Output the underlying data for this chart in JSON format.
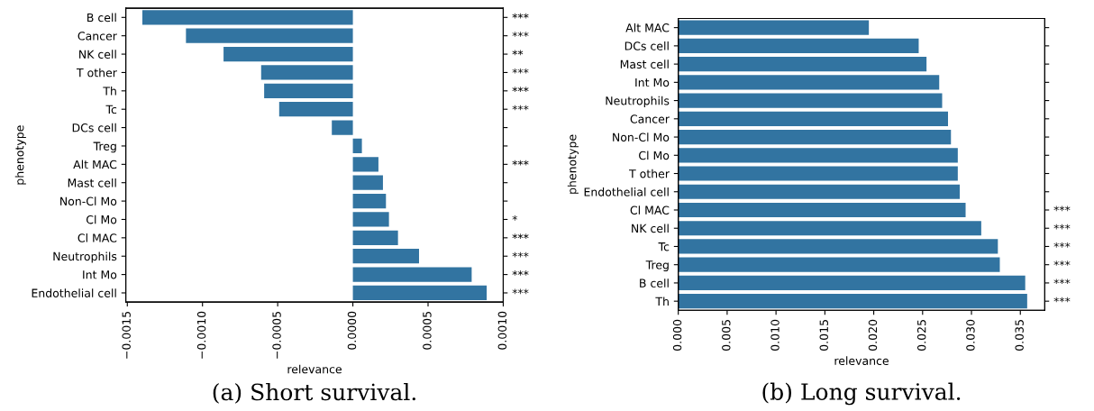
{
  "chart_data": [
    {
      "type": "bar",
      "orientation": "horizontal",
      "xlabel": "relevance",
      "ylabel": "phenotype",
      "color": "#3274a1",
      "categories": [
        "B cell",
        "Cancer",
        "NK cell",
        "T other",
        "Th",
        "Tc",
        "DCs cell",
        "Treg",
        "Alt MAC",
        "Mast cell",
        "Non-Cl Mo",
        "Cl Mo",
        "Cl MAC",
        "Neutrophils",
        "Int Mo",
        "Endothelial cell"
      ],
      "values": [
        -0.0014,
        -0.00111,
        -0.00086,
        -0.00061,
        -0.00059,
        -0.00049,
        -0.00014,
        6e-05,
        0.00017,
        0.0002,
        0.00022,
        0.00024,
        0.0003,
        0.00044,
        0.00079,
        0.00089
      ],
      "y2_categories": [
        "***",
        "***",
        "**",
        "***",
        "***",
        "***",
        null,
        null,
        "***",
        null,
        null,
        "*",
        "***",
        "***",
        "***",
        "***"
      ],
      "xlim": [
        -0.00151,
        0.001
      ],
      "xticks": [
        {
          "value": -0.0015,
          "label": "−0.0015"
        },
        {
          "value": -0.001,
          "label": "−0.0010"
        },
        {
          "value": -0.0005,
          "label": "−0.0005"
        },
        {
          "value": 0,
          "label": "0.0000"
        },
        {
          "value": 0.0005,
          "label": "0.0005"
        },
        {
          "value": 0.001,
          "label": "0.0010"
        }
      ],
      "grid": false,
      "annotations": [
        "(a) Short survival."
      ]
    },
    {
      "type": "bar",
      "orientation": "horizontal",
      "xlabel": "relevance",
      "ylabel": "phenotype",
      "color": "#3274a1",
      "categories": [
        "Alt MAC",
        "DCs cell",
        "Mast cell",
        "Int Mo",
        "Neutrophils",
        "Cancer",
        "Non-Cl Mo",
        "Cl Mo",
        "T other",
        "Endothelial cell",
        "Cl MAC",
        "NK cell",
        "Tc",
        "Treg",
        "B cell",
        "Th"
      ],
      "values": [
        0.0195,
        0.0246,
        0.0254,
        0.0267,
        0.027,
        0.0276,
        0.0279,
        0.0286,
        0.0286,
        0.0288,
        0.0294,
        0.031,
        0.0327,
        0.0329,
        0.0355,
        0.0357
      ],
      "y2_categories": [
        null,
        null,
        null,
        null,
        null,
        null,
        null,
        null,
        null,
        null,
        "***",
        "***",
        "***",
        "***",
        "***",
        "***"
      ],
      "xlim": [
        0,
        0.0375
      ],
      "xticks": [
        {
          "value": 0,
          "label": "0.000"
        },
        {
          "value": 0.005,
          "label": "0.005"
        },
        {
          "value": 0.01,
          "label": "0.010"
        },
        {
          "value": 0.015,
          "label": "0.015"
        },
        {
          "value": 0.02,
          "label": "0.020"
        },
        {
          "value": 0.025,
          "label": "0.025"
        },
        {
          "value": 0.03,
          "label": "0.030"
        },
        {
          "value": 0.035,
          "label": "0.035"
        }
      ],
      "grid": false,
      "annotations": [
        "(b) Long survival."
      ]
    }
  ]
}
